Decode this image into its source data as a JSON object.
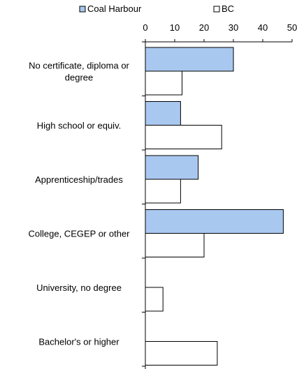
{
  "chart_data": {
    "type": "bar",
    "orientation": "horizontal",
    "categories": [
      "No certificate, diploma or degree",
      "High school or equiv.",
      "Apprenticeship/trades",
      "College, CEGEP or other",
      "University, no degree",
      "Bachelor's or higher"
    ],
    "category_label_lines": [
      [
        "No certificate, diploma or",
        "degree"
      ],
      [
        "High school or equiv."
      ],
      [
        "Apprenticeship/trades"
      ],
      [
        "College, CEGEP or other"
      ],
      [
        "University, no degree"
      ],
      [
        "Bachelor's or higher"
      ]
    ],
    "series": [
      {
        "name": "Coal Harbour",
        "values": [
          30,
          12,
          18,
          47,
          0,
          0
        ],
        "color": "#a9c8f0"
      },
      {
        "name": "BC",
        "values": [
          12.5,
          26,
          12,
          20,
          6,
          24.5
        ],
        "color": "#ffffff"
      }
    ],
    "x_ticks": [
      0,
      10,
      20,
      30,
      40,
      50
    ],
    "x_tick_labels": [
      "0",
      "10",
      "20",
      "30",
      "40",
      "50"
    ],
    "xlim": [
      0,
      50
    ],
    "legend_position": "top",
    "axis_position": "top",
    "grid": false
  }
}
